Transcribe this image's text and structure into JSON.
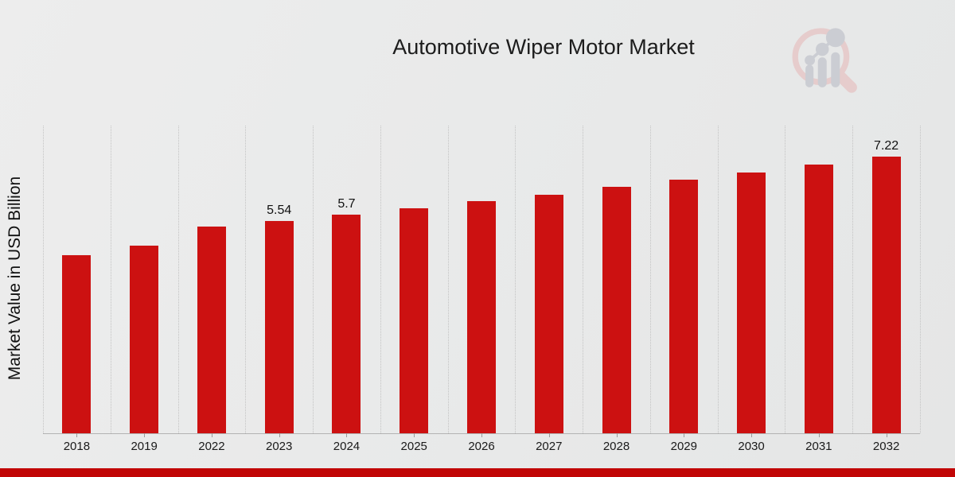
{
  "header": {
    "title": "Automotive Wiper Motor Market"
  },
  "chart_data": {
    "type": "bar",
    "title": "Automotive Wiper Motor Market",
    "xlabel": "",
    "ylabel": "Market Value in USD Billion",
    "categories": [
      "2018",
      "2019",
      "2022",
      "2023",
      "2024",
      "2025",
      "2026",
      "2027",
      "2028",
      "2029",
      "2030",
      "2031",
      "2032"
    ],
    "values": [
      4.65,
      4.9,
      5.39,
      5.54,
      5.7,
      5.87,
      6.05,
      6.23,
      6.42,
      6.61,
      6.81,
      7.01,
      7.22
    ],
    "data_labels": [
      "",
      "",
      "",
      "5.54",
      "5.7",
      "",
      "",
      "",
      "",
      "",
      "",
      "",
      "7.22"
    ],
    "ylim": [
      0,
      8
    ],
    "grid": "vertical-dotted",
    "legend": "none",
    "bar_color": "#cc1111"
  },
  "colors": {
    "accent_red": "#cc1111",
    "footer_band": "#c10606",
    "logo_ring": "#e6caca",
    "logo_bars": "#c9cbd1"
  }
}
